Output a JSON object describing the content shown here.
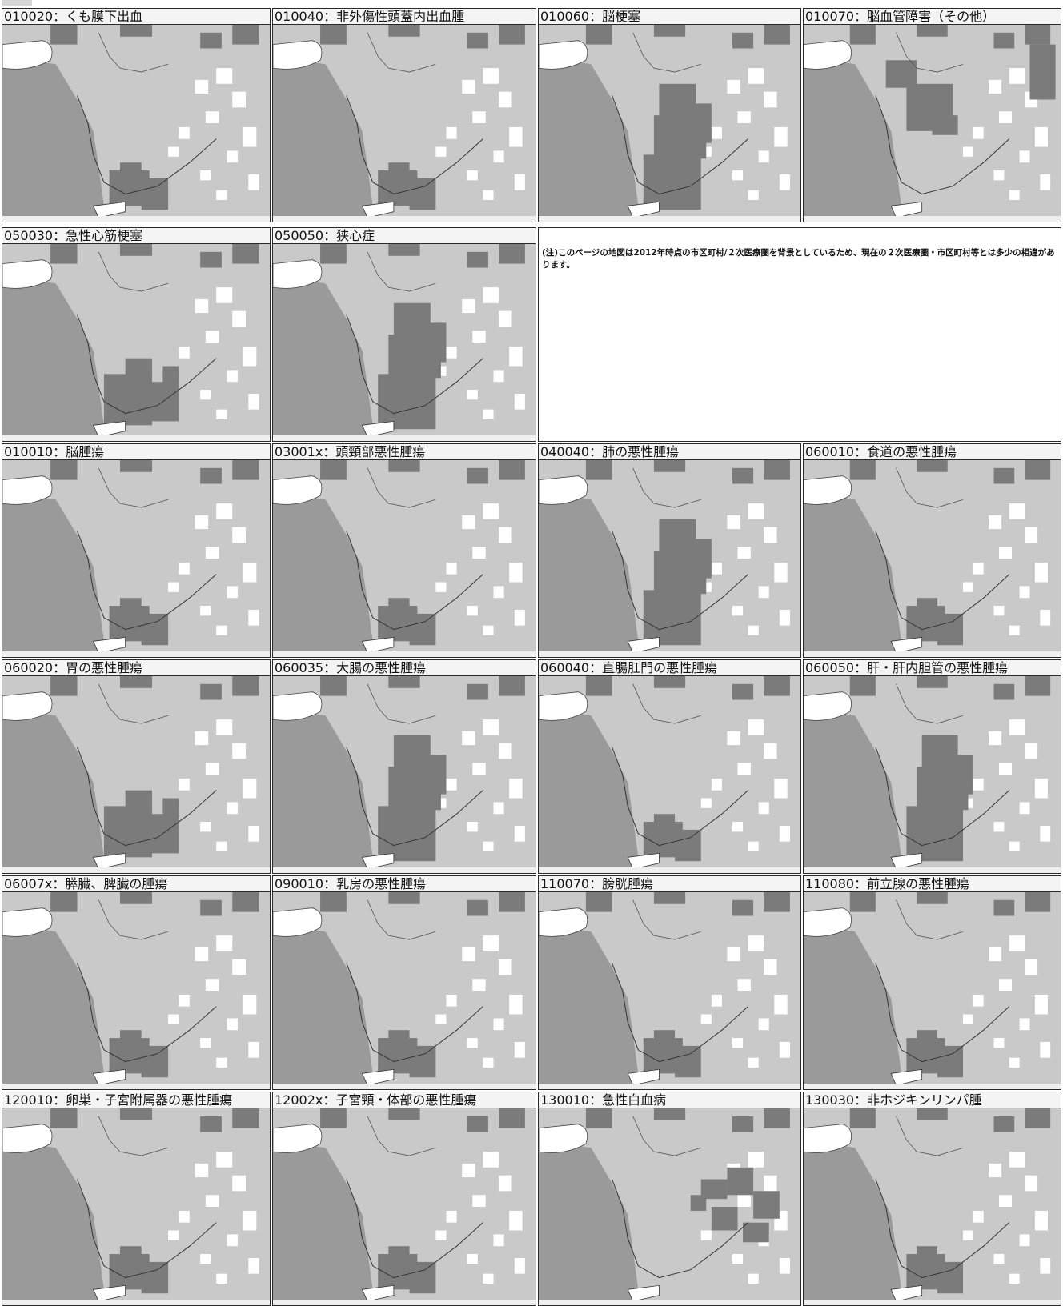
{
  "note": "(注)このページの地図は2012年時点の市区町村/２次医療圏を背景としているため、現在の２次医療圏・市区町村等とは多少の相違があります。",
  "colors": {
    "sea": "#9a9a9a",
    "land": "#c9c9c9",
    "highlight": "#7b7b7b",
    "light": "#ffffff",
    "water": "#ffffff",
    "border": "#2a2a2a"
  },
  "maps": [
    {
      "title": "010020：くも膜下出血",
      "pattern": "southwest"
    },
    {
      "title": "010040：非外傷性頭蓋内出血腫",
      "pattern": "southwest"
    },
    {
      "title": "010060：脳梗塞",
      "pattern": "central-band"
    },
    {
      "title": "010070：脳血管障害（その他）",
      "pattern": "central-north"
    },
    {
      "title": "050030：急性心筋梗塞",
      "pattern": "southwest-wide"
    },
    {
      "title": "050050：狭心症",
      "pattern": "central-band"
    },
    {
      "title": "010010：脳腫瘍",
      "pattern": "southwest"
    },
    {
      "title": "03001x：頭頸部悪性腫瘍",
      "pattern": "southwest"
    },
    {
      "title": "040040：肺の悪性腫瘍",
      "pattern": "central-band"
    },
    {
      "title": "060010：食道の悪性腫瘍",
      "pattern": "southwest"
    },
    {
      "title": "060020：胃の悪性腫瘍",
      "pattern": "southwest-wide"
    },
    {
      "title": "060035：大腸の悪性腫瘍",
      "pattern": "central-band"
    },
    {
      "title": "060040：直腸肛門の悪性腫瘍",
      "pattern": "southwest"
    },
    {
      "title": "060050：肝・肝内胆管の悪性腫瘍",
      "pattern": "central-band"
    },
    {
      "title": "06007x：膵臓、脾臓の腫瘍",
      "pattern": "southwest"
    },
    {
      "title": "090010：乳房の悪性腫瘍",
      "pattern": "southwest"
    },
    {
      "title": "110070：膀胱腫瘍",
      "pattern": "southwest"
    },
    {
      "title": "110080：前立腺の悪性腫瘍",
      "pattern": "southwest"
    },
    {
      "title": "120010：卵巣・子宮附属器の悪性腫瘍",
      "pattern": "southwest"
    },
    {
      "title": "12002x：子宮頸・体部の悪性腫瘍",
      "pattern": "southwest"
    },
    {
      "title": "130010：急性白血病",
      "pattern": "east-cluster"
    },
    {
      "title": "130030：非ホジキンリンパ腫",
      "pattern": "southwest"
    }
  ]
}
